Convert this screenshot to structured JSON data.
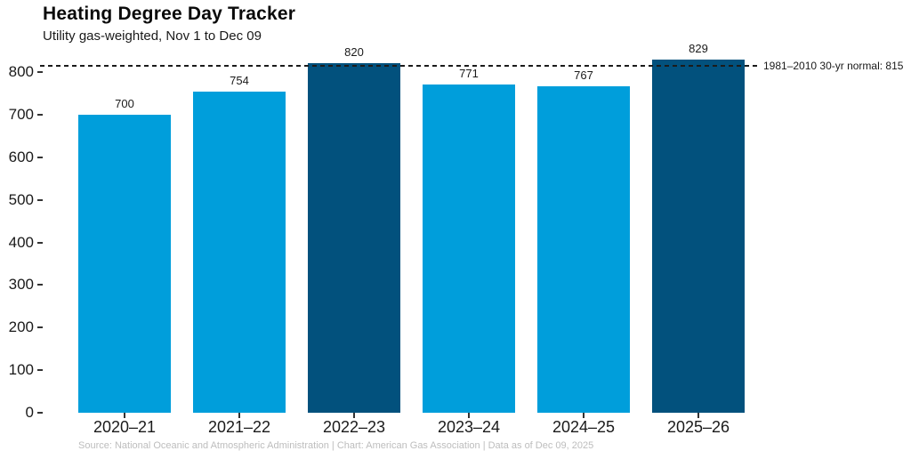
{
  "chart_data": {
    "type": "bar",
    "title": "Heating Degree Day Tracker",
    "subtitle": "Utility gas-weighted, Nov 1 to Dec 09",
    "caption": "Source: National Oceanic and Atmospheric Administration | Chart: American Gas Association | Data as of Dec 09, 2025",
    "categories": [
      "2020–21",
      "2021–22",
      "2022–23",
      "2023–24",
      "2024–25",
      "2025–26"
    ],
    "values": [
      700,
      754,
      820,
      771,
      767,
      829
    ],
    "bar_labels": [
      "700",
      "754",
      "820",
      "771",
      "767",
      "829"
    ],
    "reference_line": {
      "value": 815,
      "label": "1981–2010 30-yr normal: 815",
      "style": "dashed"
    },
    "ylim": [
      0,
      800
    ],
    "yticks": [
      0,
      100,
      200,
      300,
      400,
      500,
      600,
      700,
      800
    ],
    "grid": false,
    "legend": false,
    "colors": {
      "bar_below_normal": "#009edb",
      "bar_above_normal": "#02517d",
      "reference_line": "#1b1b1b",
      "caption_text": "#bdbdbd"
    }
  }
}
